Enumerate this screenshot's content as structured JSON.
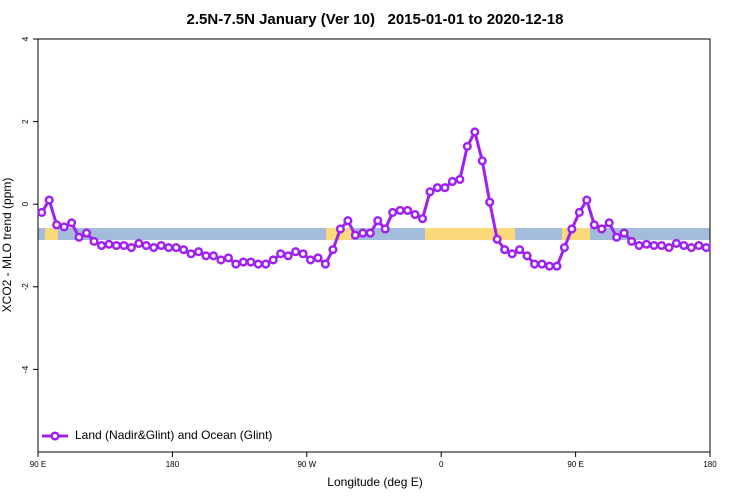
{
  "chart_data": {
    "type": "line",
    "title": "2.5N-7.5N January (Ver 10)   2015-01-01 to 2020-12-18",
    "x_label": "Longitude (deg E)",
    "y_label": "XCO2 - MLO trend (ppm)",
    "xlim": [
      90,
      540
    ],
    "ylim": [
      -6,
      4
    ],
    "xticks": [
      {
        "value": 90,
        "label": "90 E"
      },
      180,
      {
        "value": 270,
        "label": "90 W"
      },
      {
        "value": 360,
        "label": "0"
      },
      {
        "value": 450,
        "label": "90 E"
      },
      {
        "value": 540,
        "label": "180"
      }
    ],
    "yticks": [
      -4,
      -2,
      0,
      2,
      4
    ],
    "legend": "bottom-left",
    "x": [
      92.5,
      97.5,
      102.5,
      107.5,
      112.5,
      117.5,
      122.5,
      127.5,
      132.5,
      137.5,
      142.5,
      147.5,
      152.5,
      157.5,
      162.5,
      167.5,
      172.5,
      177.5,
      182.5,
      187.5,
      192.5,
      197.5,
      202.5,
      207.5,
      212.5,
      217.5,
      222.5,
      227.5,
      232.5,
      237.5,
      242.5,
      247.5,
      252.5,
      257.5,
      262.5,
      267.5,
      272.5,
      277.5,
      282.5,
      287.5,
      292.5,
      297.5,
      302.5,
      307.5,
      312.5,
      317.5,
      322.5,
      327.5,
      332.5,
      337.5,
      342.5,
      347.5,
      352.5,
      357.5,
      362.5,
      367.5,
      372.5,
      377.5,
      382.5,
      387.5,
      392.5,
      397.5,
      402.5,
      407.5,
      412.5,
      417.5,
      422.5,
      427.5,
      432.5,
      437.5,
      442.5,
      447.5,
      452.5,
      457.5,
      462.5,
      467.5,
      472.5,
      477.5,
      482.5,
      487.5,
      492.5,
      497.5,
      502.5,
      507.5,
      512.5,
      517.5,
      522.5,
      527.5,
      532.5,
      537.5
    ],
    "series": [
      {
        "name": "Land (Nadir&Glint) and Ocean (Glint)",
        "color": "#a020f0",
        "values": [
          -0.2,
          0.1,
          -0.5,
          -0.55,
          -0.45,
          -0.8,
          -0.7,
          -0.9,
          -1.0,
          -0.97,
          -1.0,
          -1.0,
          -1.05,
          -0.95,
          -1.0,
          -1.05,
          -1.0,
          -1.05,
          -1.05,
          -1.1,
          -1.2,
          -1.15,
          -1.25,
          -1.25,
          -1.35,
          -1.3,
          -1.45,
          -1.4,
          -1.4,
          -1.45,
          -1.45,
          -1.35,
          -1.2,
          -1.25,
          -1.15,
          -1.2,
          -1.35,
          -1.3,
          -1.45,
          -1.1,
          -0.6,
          -0.4,
          -0.75,
          -0.7,
          -0.7,
          -0.4,
          -0.6,
          -0.2,
          -0.15,
          -0.15,
          -0.25,
          -0.35,
          0.3,
          0.4,
          0.4,
          0.55,
          0.6,
          1.4,
          1.75,
          1.05,
          0.05,
          -0.85,
          -1.1,
          -1.2,
          -1.1,
          -1.25,
          -1.45,
          -1.45,
          -1.5,
          -1.5,
          -1.05,
          -0.6,
          -0.2,
          0.1,
          -0.5,
          -0.6,
          -0.45,
          -0.8,
          -0.7,
          -0.9,
          -1.0,
          -0.97,
          -1.0,
          -1.0,
          -1.05,
          -0.95,
          -1.0,
          -1.05,
          -1.0,
          -1.05
        ]
      }
    ]
  }
}
